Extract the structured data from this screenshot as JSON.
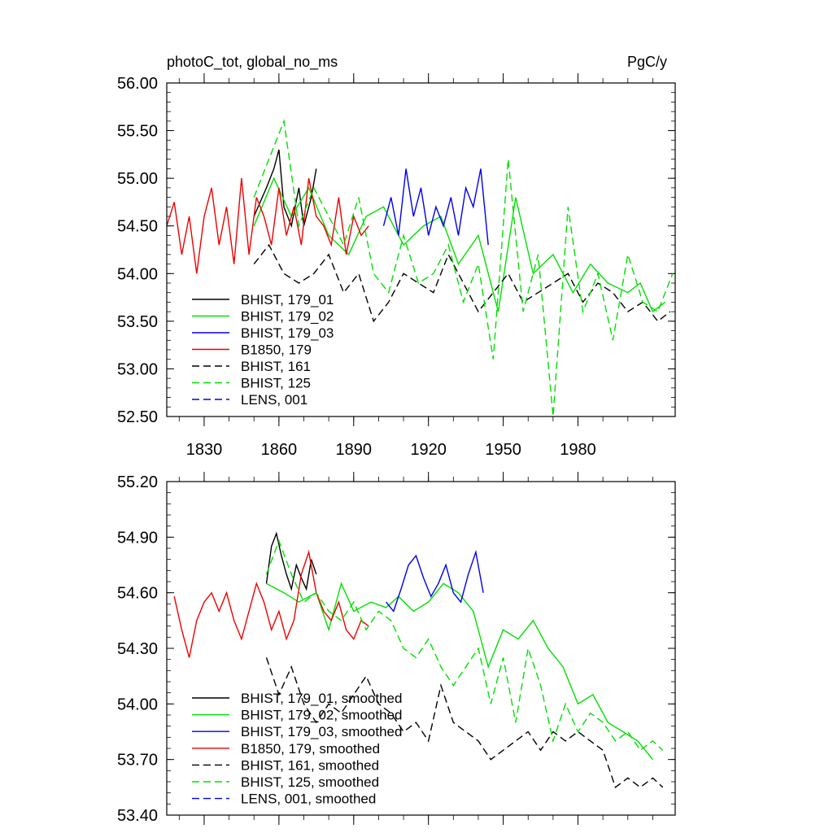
{
  "chart_data": [
    {
      "type": "line",
      "title": "photoC_tot, global_no_ms",
      "units": "PgC/y",
      "xlim": [
        1815,
        2019
      ],
      "ylim": [
        52.5,
        56.0
      ],
      "xticks": [
        1830,
        1860,
        1890,
        1920,
        1950,
        1980
      ],
      "xtick_labels": [
        "1830",
        "1860",
        "1890",
        "1920",
        "1950",
        "1980"
      ],
      "yticks": [
        52.5,
        53.0,
        53.5,
        54.0,
        54.5,
        55.0,
        55.5,
        56.0
      ],
      "ytick_labels": [
        "52.50",
        "53.00",
        "53.50",
        "54.00",
        "54.50",
        "55.00",
        "55.50",
        "56.00"
      ],
      "legend": "lower-left",
      "series": [
        {
          "name": "BHIST, 179_01",
          "color": "#000000",
          "dash": "solid",
          "x": [
            1850,
            1855,
            1858,
            1860,
            1862,
            1865,
            1868,
            1870,
            1873,
            1875
          ],
          "values": [
            54.6,
            54.9,
            55.1,
            55.3,
            54.7,
            54.5,
            54.9,
            54.5,
            54.8,
            55.1
          ]
        },
        {
          "name": "BHIST, 179_02",
          "color": "#00e000",
          "dash": "solid",
          "x": [
            1850,
            1858,
            1865,
            1872,
            1880,
            1888,
            1895,
            1902,
            1910,
            1918,
            1925,
            1932,
            1940,
            1948,
            1955,
            1962,
            1970,
            1978,
            1985,
            1992,
            2000,
            2005,
            2010,
            2015
          ],
          "values": [
            54.5,
            55.0,
            54.6,
            54.9,
            54.4,
            54.2,
            54.6,
            54.7,
            54.3,
            54.5,
            54.6,
            54.1,
            54.4,
            53.6,
            54.8,
            54.0,
            54.2,
            53.8,
            54.1,
            53.9,
            53.8,
            53.9,
            53.6,
            53.7
          ]
        },
        {
          "name": "BHIST, 179_03",
          "color": "#0000ee",
          "dash": "solid",
          "x": [
            1902,
            1905,
            1908,
            1911,
            1914,
            1917,
            1920,
            1923,
            1926,
            1929,
            1932,
            1935,
            1938,
            1941,
            1944
          ],
          "values": [
            54.5,
            54.8,
            54.4,
            55.1,
            54.6,
            54.9,
            54.4,
            54.7,
            54.5,
            54.8,
            54.4,
            54.9,
            54.7,
            55.1,
            54.3
          ]
        },
        {
          "name": "B1850, 179",
          "color": "#ee0000",
          "dash": "solid",
          "x": [
            1815,
            1818,
            1821,
            1824,
            1827,
            1830,
            1833,
            1836,
            1839,
            1842,
            1845,
            1848,
            1851,
            1854,
            1857,
            1860,
            1863,
            1866,
            1869,
            1872,
            1875,
            1878,
            1881,
            1884,
            1887,
            1890,
            1893,
            1896
          ],
          "values": [
            54.5,
            54.75,
            54.2,
            54.6,
            54.0,
            54.6,
            54.9,
            54.3,
            54.7,
            54.1,
            55.0,
            54.2,
            54.8,
            54.6,
            54.3,
            54.9,
            54.4,
            54.7,
            54.3,
            55.0,
            54.6,
            54.5,
            54.3,
            54.8,
            54.2,
            54.6,
            54.4,
            54.5
          ]
        },
        {
          "name": "BHIST, 161",
          "color": "#000000",
          "dash": "dashed",
          "x": [
            1850,
            1856,
            1862,
            1868,
            1874,
            1880,
            1886,
            1892,
            1898,
            1904,
            1910,
            1916,
            1922,
            1928,
            1934,
            1940,
            1946,
            1952,
            1958,
            1964,
            1970,
            1976,
            1982,
            1988,
            1994,
            2000,
            2006,
            2012,
            2017
          ],
          "values": [
            54.1,
            54.3,
            54.0,
            53.9,
            54.0,
            54.2,
            53.8,
            54.0,
            53.5,
            53.7,
            54.0,
            53.9,
            53.8,
            54.2,
            53.9,
            53.6,
            53.8,
            54.0,
            53.7,
            53.8,
            53.9,
            54.0,
            53.7,
            53.9,
            53.8,
            53.6,
            53.7,
            53.5,
            53.6
          ]
        },
        {
          "name": "BHIST, 125",
          "color": "#00e000",
          "dash": "dashed",
          "x": [
            1850,
            1856,
            1862,
            1868,
            1874,
            1880,
            1886,
            1892,
            1898,
            1904,
            1910,
            1916,
            1922,
            1928,
            1934,
            1940,
            1946,
            1952,
            1958,
            1964,
            1970,
            1976,
            1982,
            1988,
            1994,
            2000,
            2006,
            2012,
            2018
          ],
          "values": [
            54.8,
            55.2,
            55.6,
            54.5,
            54.9,
            54.6,
            54.3,
            54.8,
            54.0,
            53.8,
            54.4,
            53.9,
            54.0,
            54.3,
            53.7,
            54.1,
            53.1,
            55.2,
            53.6,
            54.2,
            52.5,
            54.7,
            53.6,
            54.0,
            53.3,
            54.2,
            53.7,
            53.6,
            54.0
          ]
        },
        {
          "name": "LENS, 001",
          "color": "#0000ee",
          "dash": "dashed",
          "x": [],
          "values": []
        }
      ]
    },
    {
      "type": "line",
      "title": "",
      "units": "",
      "xlim": [
        1815,
        2019
      ],
      "ylim": [
        53.4,
        55.2
      ],
      "xticks": [
        1830,
        1860,
        1890,
        1920,
        1950,
        1980
      ],
      "xtick_labels": [],
      "yticks": [
        53.4,
        53.7,
        54.0,
        54.3,
        54.6,
        54.9,
        55.2
      ],
      "ytick_labels": [
        "53.40",
        "53.70",
        "54.00",
        "54.30",
        "54.60",
        "54.90",
        "55.20"
      ],
      "legend": "lower-left",
      "series": [
        {
          "name": "BHIST, 179_01, smoothed",
          "color": "#000000",
          "dash": "solid",
          "x": [
            1855,
            1857,
            1859,
            1861,
            1863,
            1865,
            1867,
            1869,
            1871,
            1873,
            1875
          ],
          "values": [
            54.65,
            54.85,
            54.92,
            54.8,
            54.7,
            54.62,
            54.75,
            54.68,
            54.62,
            54.78,
            54.7
          ]
        },
        {
          "name": "BHIST, 179_02, smoothed",
          "color": "#00e000",
          "dash": "solid",
          "x": [
            1855,
            1862,
            1868,
            1875,
            1880,
            1885,
            1890,
            1897,
            1903,
            1908,
            1914,
            1920,
            1926,
            1932,
            1938,
            1944,
            1950,
            1956,
            1962,
            1968,
            1974,
            1980,
            1986,
            1992,
            1998,
            2004,
            2010
          ],
          "values": [
            54.65,
            54.6,
            54.55,
            54.6,
            54.4,
            54.65,
            54.5,
            54.55,
            54.52,
            54.58,
            54.5,
            54.55,
            54.65,
            54.6,
            54.5,
            54.2,
            54.4,
            54.35,
            54.45,
            54.3,
            54.2,
            54.0,
            54.05,
            53.9,
            53.85,
            53.8,
            53.7
          ]
        },
        {
          "name": "BHIST, 179_03, smoothed",
          "color": "#0000ee",
          "dash": "solid",
          "x": [
            1903,
            1906,
            1909,
            1912,
            1915,
            1918,
            1921,
            1924,
            1927,
            1930,
            1933,
            1936,
            1939,
            1942
          ],
          "values": [
            54.55,
            54.5,
            54.62,
            54.75,
            54.8,
            54.68,
            54.58,
            54.65,
            54.75,
            54.6,
            54.55,
            54.7,
            54.82,
            54.6
          ]
        },
        {
          "name": "B1850, 179, smoothed",
          "color": "#ee0000",
          "dash": "solid",
          "x": [
            1818,
            1821,
            1824,
            1827,
            1830,
            1833,
            1836,
            1839,
            1842,
            1845,
            1848,
            1851,
            1854,
            1857,
            1860,
            1863,
            1866,
            1869,
            1872,
            1875,
            1878,
            1881,
            1884,
            1887,
            1890,
            1893,
            1896
          ],
          "values": [
            54.58,
            54.4,
            54.25,
            54.45,
            54.55,
            54.6,
            54.5,
            54.6,
            54.45,
            54.35,
            54.5,
            54.65,
            54.55,
            54.4,
            54.5,
            54.35,
            54.45,
            54.7,
            54.82,
            54.6,
            54.5,
            54.45,
            54.55,
            54.4,
            54.35,
            54.45,
            54.42
          ]
        },
        {
          "name": "BHIST, 161, smoothed",
          "color": "#000000",
          "dash": "dashed",
          "x": [
            1855,
            1860,
            1865,
            1870,
            1875,
            1880,
            1885,
            1890,
            1895,
            1900,
            1905,
            1910,
            1915,
            1920,
            1925,
            1930,
            1935,
            1940,
            1945,
            1950,
            1955,
            1960,
            1965,
            1970,
            1975,
            1980,
            1985,
            1990,
            1995,
            2000,
            2005,
            2010,
            2014
          ],
          "values": [
            54.25,
            54.05,
            54.2,
            54.0,
            53.9,
            54.0,
            53.95,
            54.05,
            54.15,
            54.0,
            53.95,
            53.85,
            53.9,
            53.8,
            54.1,
            53.9,
            53.85,
            53.8,
            53.7,
            53.75,
            53.8,
            53.85,
            53.75,
            53.85,
            53.8,
            53.85,
            53.8,
            53.75,
            53.55,
            53.6,
            53.55,
            53.6,
            53.55
          ]
        },
        {
          "name": "BHIST, 125, smoothed",
          "color": "#00e000",
          "dash": "dashed",
          "x": [
            1855,
            1860,
            1865,
            1870,
            1875,
            1880,
            1885,
            1890,
            1895,
            1900,
            1905,
            1910,
            1915,
            1920,
            1925,
            1930,
            1935,
            1940,
            1945,
            1950,
            1955,
            1960,
            1965,
            1970,
            1975,
            1980,
            1985,
            1990,
            1995,
            2000,
            2005,
            2010,
            2014
          ],
          "values": [
            54.7,
            54.88,
            54.7,
            54.55,
            54.6,
            54.5,
            54.45,
            54.55,
            54.4,
            54.5,
            54.45,
            54.3,
            54.25,
            54.35,
            54.2,
            54.1,
            54.2,
            54.3,
            54.0,
            54.25,
            53.9,
            54.3,
            54.1,
            53.8,
            54.0,
            53.85,
            53.95,
            53.9,
            53.8,
            53.85,
            53.75,
            53.8,
            53.75
          ]
        },
        {
          "name": "LENS, 001, smoothed",
          "color": "#0000ee",
          "dash": "dashed",
          "x": [],
          "values": []
        }
      ]
    }
  ]
}
